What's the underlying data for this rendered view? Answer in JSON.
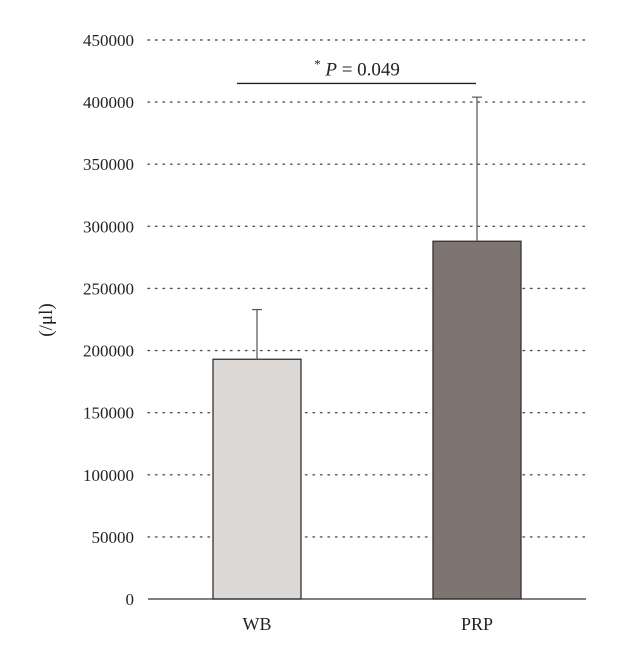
{
  "chart_data": {
    "type": "bar",
    "categories": [
      "WB",
      "PRP"
    ],
    "values": [
      193000,
      288000
    ],
    "error_upper": [
      233000,
      404000
    ],
    "ylabel": "(/μl)",
    "xlabel": "",
    "ylim": [
      0,
      450000
    ],
    "yticks": [
      "0",
      "50000",
      "100000",
      "150000",
      "200000",
      "250000",
      "300000",
      "350000",
      "400000",
      "450000"
    ],
    "tick_values": [
      0,
      50000,
      100000,
      150000,
      200000,
      250000,
      300000,
      350000,
      400000,
      450000
    ],
    "grid": "dotted horizontal",
    "colors": [
      "#dcd9d6",
      "#7e7573"
    ],
    "annotation": {
      "star": "*",
      "p_label": "P",
      "p_value": " = 0.049",
      "y_value": 415000
    }
  }
}
